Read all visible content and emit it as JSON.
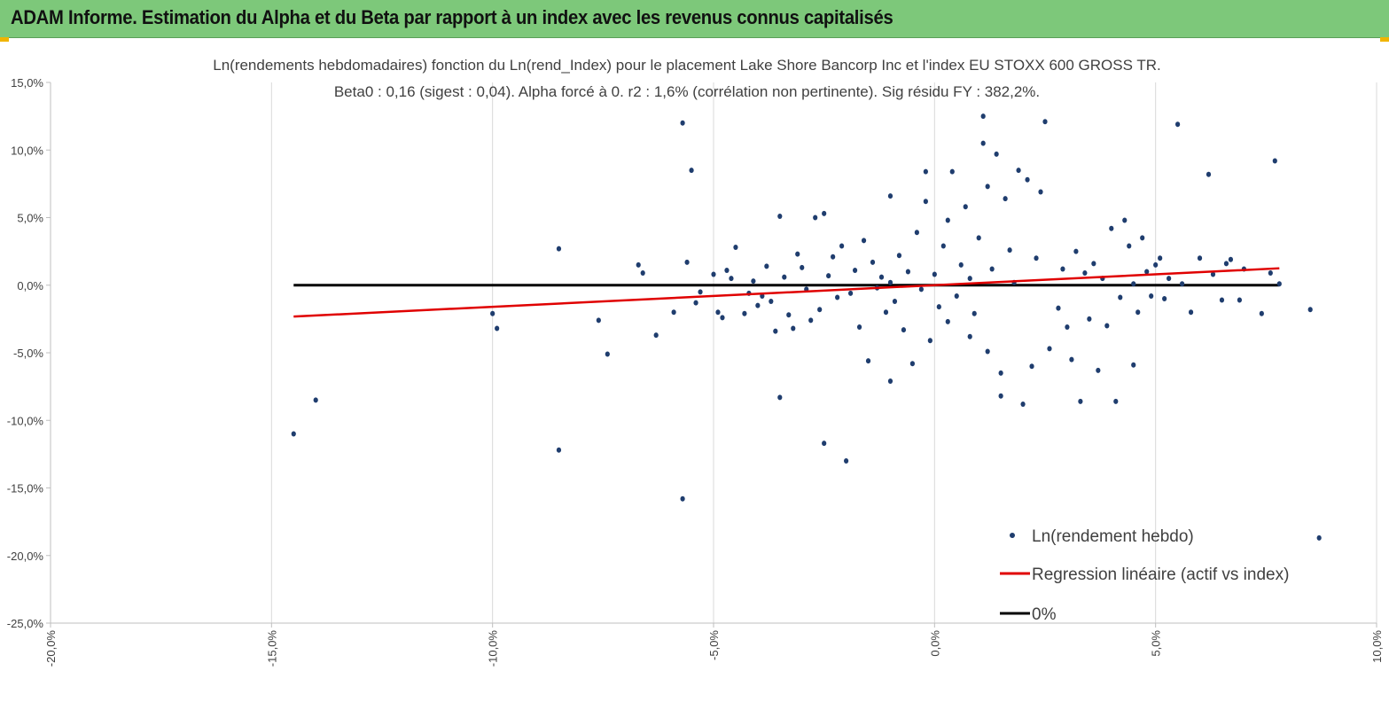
{
  "banner": {
    "title": "ADAM Informe. Estimation du Alpha et du Beta par rapport à un index avec les revenus connus capitalisés"
  },
  "colors": {
    "banner_bg": "#7dc87a",
    "points": "#1f3d6e",
    "regression": "#e00000",
    "zero_line": "#000000",
    "grid": "#d9d9d9"
  },
  "chart_data": {
    "type": "scatter",
    "title_line1": "Ln(rendements hebdomadaires) fonction du Ln(rend_Index) pour le placement Lake Shore Bancorp Inc et l'index EU STOXX 600 GROSS TR.",
    "title_line2": "Beta0 : 0,16 (sigest : 0,04).  Alpha forcé à 0. r2 : 1,6% (corrélation non pertinente). Sig résidu FY : 382,2%.",
    "xlim": [
      -0.2,
      0.1
    ],
    "ylim": [
      -0.25,
      0.15
    ],
    "x_ticks": [
      -0.2,
      -0.15,
      -0.1,
      -0.05,
      0.0,
      0.05,
      0.1
    ],
    "x_tick_labels": [
      "-20,0%",
      "-15,0%",
      "-10,0%",
      "-5,0%",
      "0,0%",
      "5,0%",
      "10,0%"
    ],
    "y_ticks": [
      0.15,
      0.1,
      0.05,
      0.0,
      -0.05,
      -0.1,
      -0.15,
      -0.2,
      -0.25
    ],
    "y_tick_labels": [
      "15,0%",
      "10,0%",
      "5,0%",
      "0,0%",
      "-5,0%",
      "-10,0%",
      "-15,0%",
      "-20,0%",
      "-25,0%"
    ],
    "grid": "vertical",
    "beta": 0.16,
    "alpha": 0,
    "regression_line": {
      "x": [
        -0.145,
        0.078
      ],
      "y": [
        -0.0232,
        0.0125
      ]
    },
    "zero_line": {
      "x": [
        -0.145,
        0.078
      ],
      "y": [
        0,
        0
      ]
    },
    "legend": {
      "position": "bottom-right",
      "entries": [
        {
          "label": "Ln(rendement hebdo)",
          "kind": "marker"
        },
        {
          "label": "Regression linéaire (actif vs index)",
          "kind": "red-line"
        },
        {
          "label": "0%",
          "kind": "black-line"
        }
      ]
    },
    "series": [
      {
        "name": "Ln(rendement hebdo)",
        "points": [
          [
            -0.145,
            -0.11
          ],
          [
            -0.14,
            -0.085
          ],
          [
            -0.1,
            -0.021
          ],
          [
            -0.099,
            -0.032
          ],
          [
            -0.085,
            0.027
          ],
          [
            -0.085,
            -0.122
          ],
          [
            -0.076,
            -0.026
          ],
          [
            -0.074,
            -0.051
          ],
          [
            -0.067,
            0.015
          ],
          [
            -0.066,
            0.009
          ],
          [
            -0.063,
            -0.037
          ],
          [
            -0.059,
            -0.02
          ],
          [
            -0.057,
            0.12
          ],
          [
            -0.056,
            0.017
          ],
          [
            -0.057,
            -0.158
          ],
          [
            -0.055,
            0.085
          ],
          [
            -0.054,
            -0.013
          ],
          [
            -0.053,
            -0.005
          ],
          [
            -0.05,
            0.008
          ],
          [
            -0.049,
            -0.02
          ],
          [
            -0.048,
            -0.024
          ],
          [
            -0.047,
            0.011
          ],
          [
            -0.046,
            0.005
          ],
          [
            -0.045,
            0.028
          ],
          [
            -0.043,
            -0.021
          ],
          [
            -0.042,
            -0.006
          ],
          [
            -0.041,
            0.003
          ],
          [
            -0.04,
            -0.015
          ],
          [
            -0.039,
            -0.008
          ],
          [
            -0.038,
            0.014
          ],
          [
            -0.037,
            -0.012
          ],
          [
            -0.036,
            -0.034
          ],
          [
            -0.035,
            0.051
          ],
          [
            -0.035,
            -0.083
          ],
          [
            -0.034,
            0.006
          ],
          [
            -0.033,
            -0.022
          ],
          [
            -0.032,
            -0.032
          ],
          [
            -0.031,
            0.023
          ],
          [
            -0.03,
            0.013
          ],
          [
            -0.029,
            -0.003
          ],
          [
            -0.028,
            -0.026
          ],
          [
            -0.027,
            0.05
          ],
          [
            -0.026,
            -0.018
          ],
          [
            -0.025,
            0.053
          ],
          [
            -0.025,
            -0.117
          ],
          [
            -0.024,
            0.007
          ],
          [
            -0.023,
            0.021
          ],
          [
            -0.022,
            -0.009
          ],
          [
            -0.021,
            0.029
          ],
          [
            -0.02,
            -0.13
          ],
          [
            -0.019,
            -0.006
          ],
          [
            -0.018,
            0.011
          ],
          [
            -0.017,
            -0.031
          ],
          [
            -0.016,
            0.033
          ],
          [
            -0.015,
            -0.056
          ],
          [
            -0.014,
            0.017
          ],
          [
            -0.013,
            -0.002
          ],
          [
            -0.012,
            0.006
          ],
          [
            -0.011,
            -0.02
          ],
          [
            -0.01,
            0.002
          ],
          [
            -0.01,
            0.066
          ],
          [
            -0.01,
            -0.071
          ],
          [
            -0.009,
            -0.012
          ],
          [
            -0.008,
            0.022
          ],
          [
            -0.007,
            -0.033
          ],
          [
            -0.006,
            0.01
          ],
          [
            -0.005,
            -0.058
          ],
          [
            -0.004,
            0.039
          ],
          [
            -0.003,
            -0.003
          ],
          [
            -0.002,
            0.062
          ],
          [
            -0.002,
            0.084
          ],
          [
            -0.001,
            -0.041
          ],
          [
            0.0,
            0.008
          ],
          [
            0.001,
            -0.016
          ],
          [
            0.002,
            0.029
          ],
          [
            0.003,
            0.048
          ],
          [
            0.003,
            -0.027
          ],
          [
            0.004,
            0.084
          ],
          [
            0.005,
            -0.008
          ],
          [
            0.006,
            0.015
          ],
          [
            0.007,
            0.058
          ],
          [
            0.008,
            -0.038
          ],
          [
            0.008,
            0.005
          ],
          [
            0.009,
            -0.021
          ],
          [
            0.01,
            0.035
          ],
          [
            0.011,
            0.125
          ],
          [
            0.011,
            0.105
          ],
          [
            0.012,
            0.073
          ],
          [
            0.012,
            -0.049
          ],
          [
            0.013,
            0.012
          ],
          [
            0.014,
            0.097
          ],
          [
            0.015,
            -0.065
          ],
          [
            0.015,
            -0.082
          ],
          [
            0.016,
            0.064
          ],
          [
            0.017,
            0.026
          ],
          [
            0.018,
            0.002
          ],
          [
            0.019,
            0.085
          ],
          [
            0.02,
            -0.088
          ],
          [
            0.021,
            0.078
          ],
          [
            0.022,
            -0.06
          ],
          [
            0.023,
            0.02
          ],
          [
            0.024,
            0.069
          ],
          [
            0.025,
            0.121
          ],
          [
            0.026,
            -0.047
          ],
          [
            0.028,
            -0.017
          ],
          [
            0.029,
            0.012
          ],
          [
            0.03,
            -0.031
          ],
          [
            0.031,
            -0.055
          ],
          [
            0.032,
            0.025
          ],
          [
            0.033,
            -0.086
          ],
          [
            0.034,
            0.009
          ],
          [
            0.035,
            -0.025
          ],
          [
            0.036,
            0.016
          ],
          [
            0.037,
            -0.063
          ],
          [
            0.038,
            0.005
          ],
          [
            0.039,
            -0.03
          ],
          [
            0.04,
            0.042
          ],
          [
            0.041,
            -0.086
          ],
          [
            0.042,
            -0.009
          ],
          [
            0.043,
            0.048
          ],
          [
            0.044,
            0.029
          ],
          [
            0.045,
            -0.059
          ],
          [
            0.045,
            0.001
          ],
          [
            0.046,
            -0.02
          ],
          [
            0.047,
            0.035
          ],
          [
            0.048,
            0.01
          ],
          [
            0.049,
            -0.008
          ],
          [
            0.05,
            0.015
          ],
          [
            0.051,
            0.02
          ],
          [
            0.052,
            -0.01
          ],
          [
            0.053,
            0.005
          ],
          [
            0.055,
            0.119
          ],
          [
            0.056,
            0.001
          ],
          [
            0.058,
            -0.02
          ],
          [
            0.06,
            0.02
          ],
          [
            0.062,
            0.082
          ],
          [
            0.063,
            0.008
          ],
          [
            0.065,
            -0.011
          ],
          [
            0.066,
            0.016
          ],
          [
            0.067,
            0.019
          ],
          [
            0.069,
            -0.011
          ],
          [
            0.07,
            0.012
          ],
          [
            0.074,
            -0.021
          ],
          [
            0.076,
            0.009
          ],
          [
            0.077,
            0.092
          ],
          [
            0.078,
            0.001
          ],
          [
            0.085,
            -0.018
          ],
          [
            0.087,
            -0.187
          ]
        ]
      }
    ]
  }
}
